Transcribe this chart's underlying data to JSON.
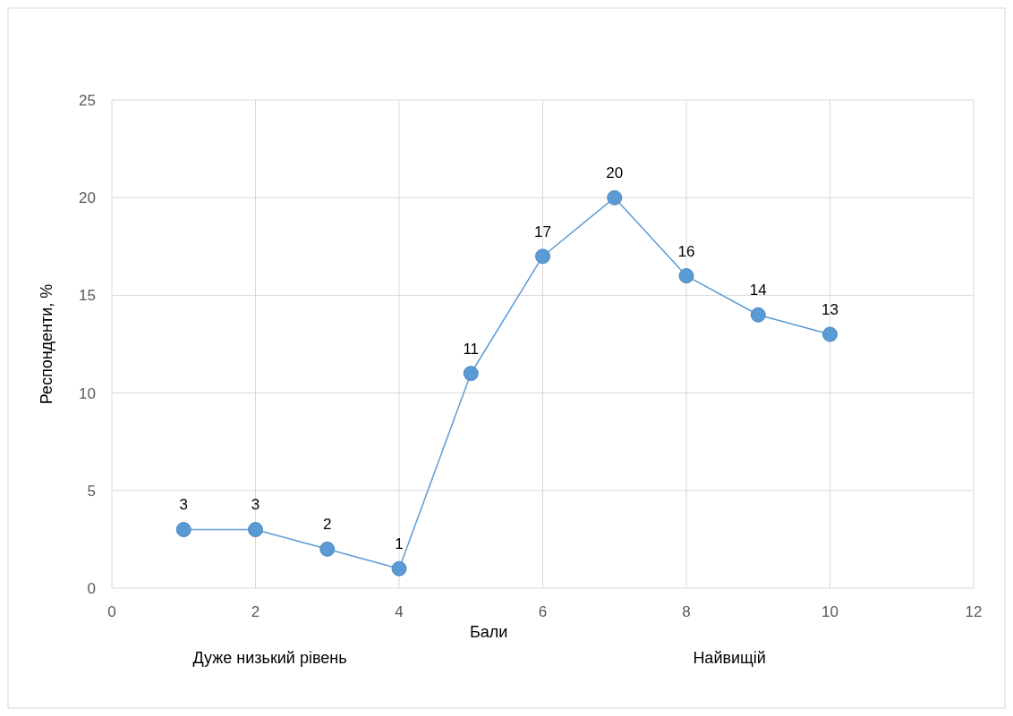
{
  "chart_data": {
    "type": "line",
    "xlabel": "Бали",
    "ylabel": "Респонденти, %",
    "x": [
      1,
      2,
      3,
      4,
      5,
      6,
      7,
      8,
      9,
      10
    ],
    "series": [
      {
        "color": "#5b9bd5",
        "values": [
          3,
          3,
          2,
          1,
          11,
          17,
          20,
          16,
          14,
          13
        ]
      }
    ],
    "xlim": [
      0,
      12
    ],
    "xticks": [
      0,
      2,
      4,
      6,
      8,
      10,
      12
    ],
    "ylim": [
      0,
      25
    ],
    "yticks": [
      0,
      5,
      10,
      15,
      20,
      25
    ],
    "grid": true,
    "marker": "circle",
    "line_style": "solid",
    "data_labels": true,
    "annotations": [
      "Дуже низький рівень",
      "Найвищій"
    ]
  }
}
